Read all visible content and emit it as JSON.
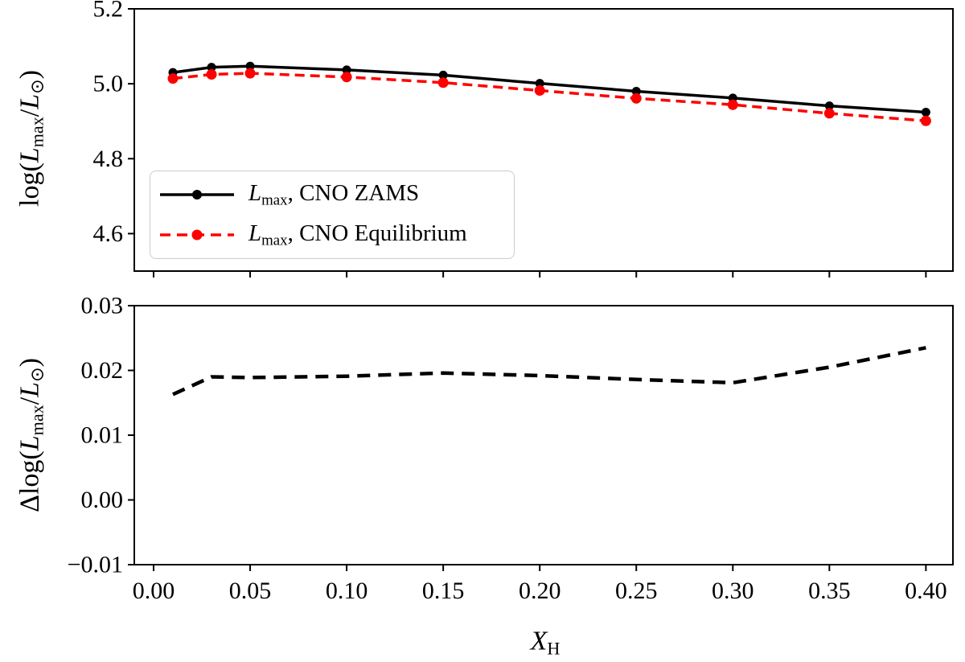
{
  "figure": {
    "background": "#ffffff",
    "foreground": "#000000",
    "accent_red": "#ff0000",
    "legend_border": "#cccccc"
  },
  "labels": {
    "top_y": {
      "pre": "log(",
      "sym": "L",
      "sub": "max",
      "mid": "/",
      "sym2": "L",
      "sub2": "⊙",
      "post": ")"
    },
    "bottom_y": {
      "pre": "Δlog(",
      "sym": "L",
      "sub": "max",
      "mid": "/",
      "sym2": "L",
      "sub2": "⊙",
      "post": ")"
    },
    "x": {
      "sym": "X",
      "sub": "H"
    }
  },
  "legend": {
    "position": "lower left",
    "entries": [
      {
        "sym": "L",
        "sub": "max",
        "rest": ", CNO ZAMS",
        "color": "#000000",
        "linestyle": "solid"
      },
      {
        "sym": "L",
        "sub": "max",
        "rest": ", CNO Equilibrium",
        "color": "#ff0000",
        "linestyle": "dashed"
      }
    ]
  },
  "chart_data": [
    {
      "type": "line",
      "panel": "top",
      "title": "",
      "ylabel": "log(Lmax/Lsun)",
      "xlabel": "",
      "x": [
        0.01,
        0.03,
        0.05,
        0.1,
        0.15,
        0.2,
        0.25,
        0.3,
        0.35,
        0.4
      ],
      "series": [
        {
          "name": "Lmax, CNO ZAMS",
          "color": "#000000",
          "linestyle": "solid",
          "marker": "circle",
          "values": [
            5.03,
            5.044,
            5.047,
            5.037,
            5.023,
            5.001,
            4.98,
            4.962,
            4.941,
            4.924
          ]
        },
        {
          "name": "Lmax, CNO Equilibrium",
          "color": "#ff0000",
          "linestyle": "dashed",
          "marker": "circle",
          "values": [
            5.014,
            5.025,
            5.028,
            5.018,
            5.003,
            4.982,
            4.961,
            4.944,
            4.921,
            4.901
          ]
        }
      ],
      "xlim": [
        -0.01,
        0.414
      ],
      "ylim": [
        4.5,
        5.2
      ],
      "yticks": [
        5.2,
        5.0,
        4.8,
        4.6
      ],
      "ytick_labels": [
        "5.2",
        "5.0",
        "4.8",
        "4.6"
      ],
      "xticks": [
        0.0,
        0.05,
        0.1,
        0.15,
        0.2,
        0.25,
        0.3,
        0.35,
        0.4
      ],
      "xtick_labels": [],
      "grid": false,
      "legend_position": "lower left"
    },
    {
      "type": "line",
      "panel": "bottom",
      "title": "",
      "ylabel": "Δlog(Lmax/Lsun)",
      "xlabel": "XH",
      "x": [
        0.01,
        0.03,
        0.05,
        0.1,
        0.15,
        0.2,
        0.25,
        0.3,
        0.35,
        0.4
      ],
      "series": [
        {
          "name": "Δlog(Lmax/Lsun)",
          "color": "#000000",
          "linestyle": "dashed",
          "marker": "none",
          "values": [
            0.0163,
            0.019,
            0.0189,
            0.0191,
            0.0196,
            0.0192,
            0.0186,
            0.0181,
            0.0205,
            0.0235
          ]
        }
      ],
      "xlim": [
        -0.01,
        0.414
      ],
      "ylim": [
        -0.01,
        0.03
      ],
      "yticks": [
        0.03,
        0.02,
        0.01,
        0.0,
        -0.01
      ],
      "ytick_labels": [
        "0.03",
        "0.02",
        "0.01",
        "0.00",
        "−0.01"
      ],
      "xticks": [
        0.0,
        0.05,
        0.1,
        0.15,
        0.2,
        0.25,
        0.3,
        0.35,
        0.4
      ],
      "xtick_labels": [
        "0.00",
        "0.05",
        "0.10",
        "0.15",
        "0.20",
        "0.25",
        "0.30",
        "0.35",
        "0.40"
      ],
      "grid": false
    }
  ]
}
